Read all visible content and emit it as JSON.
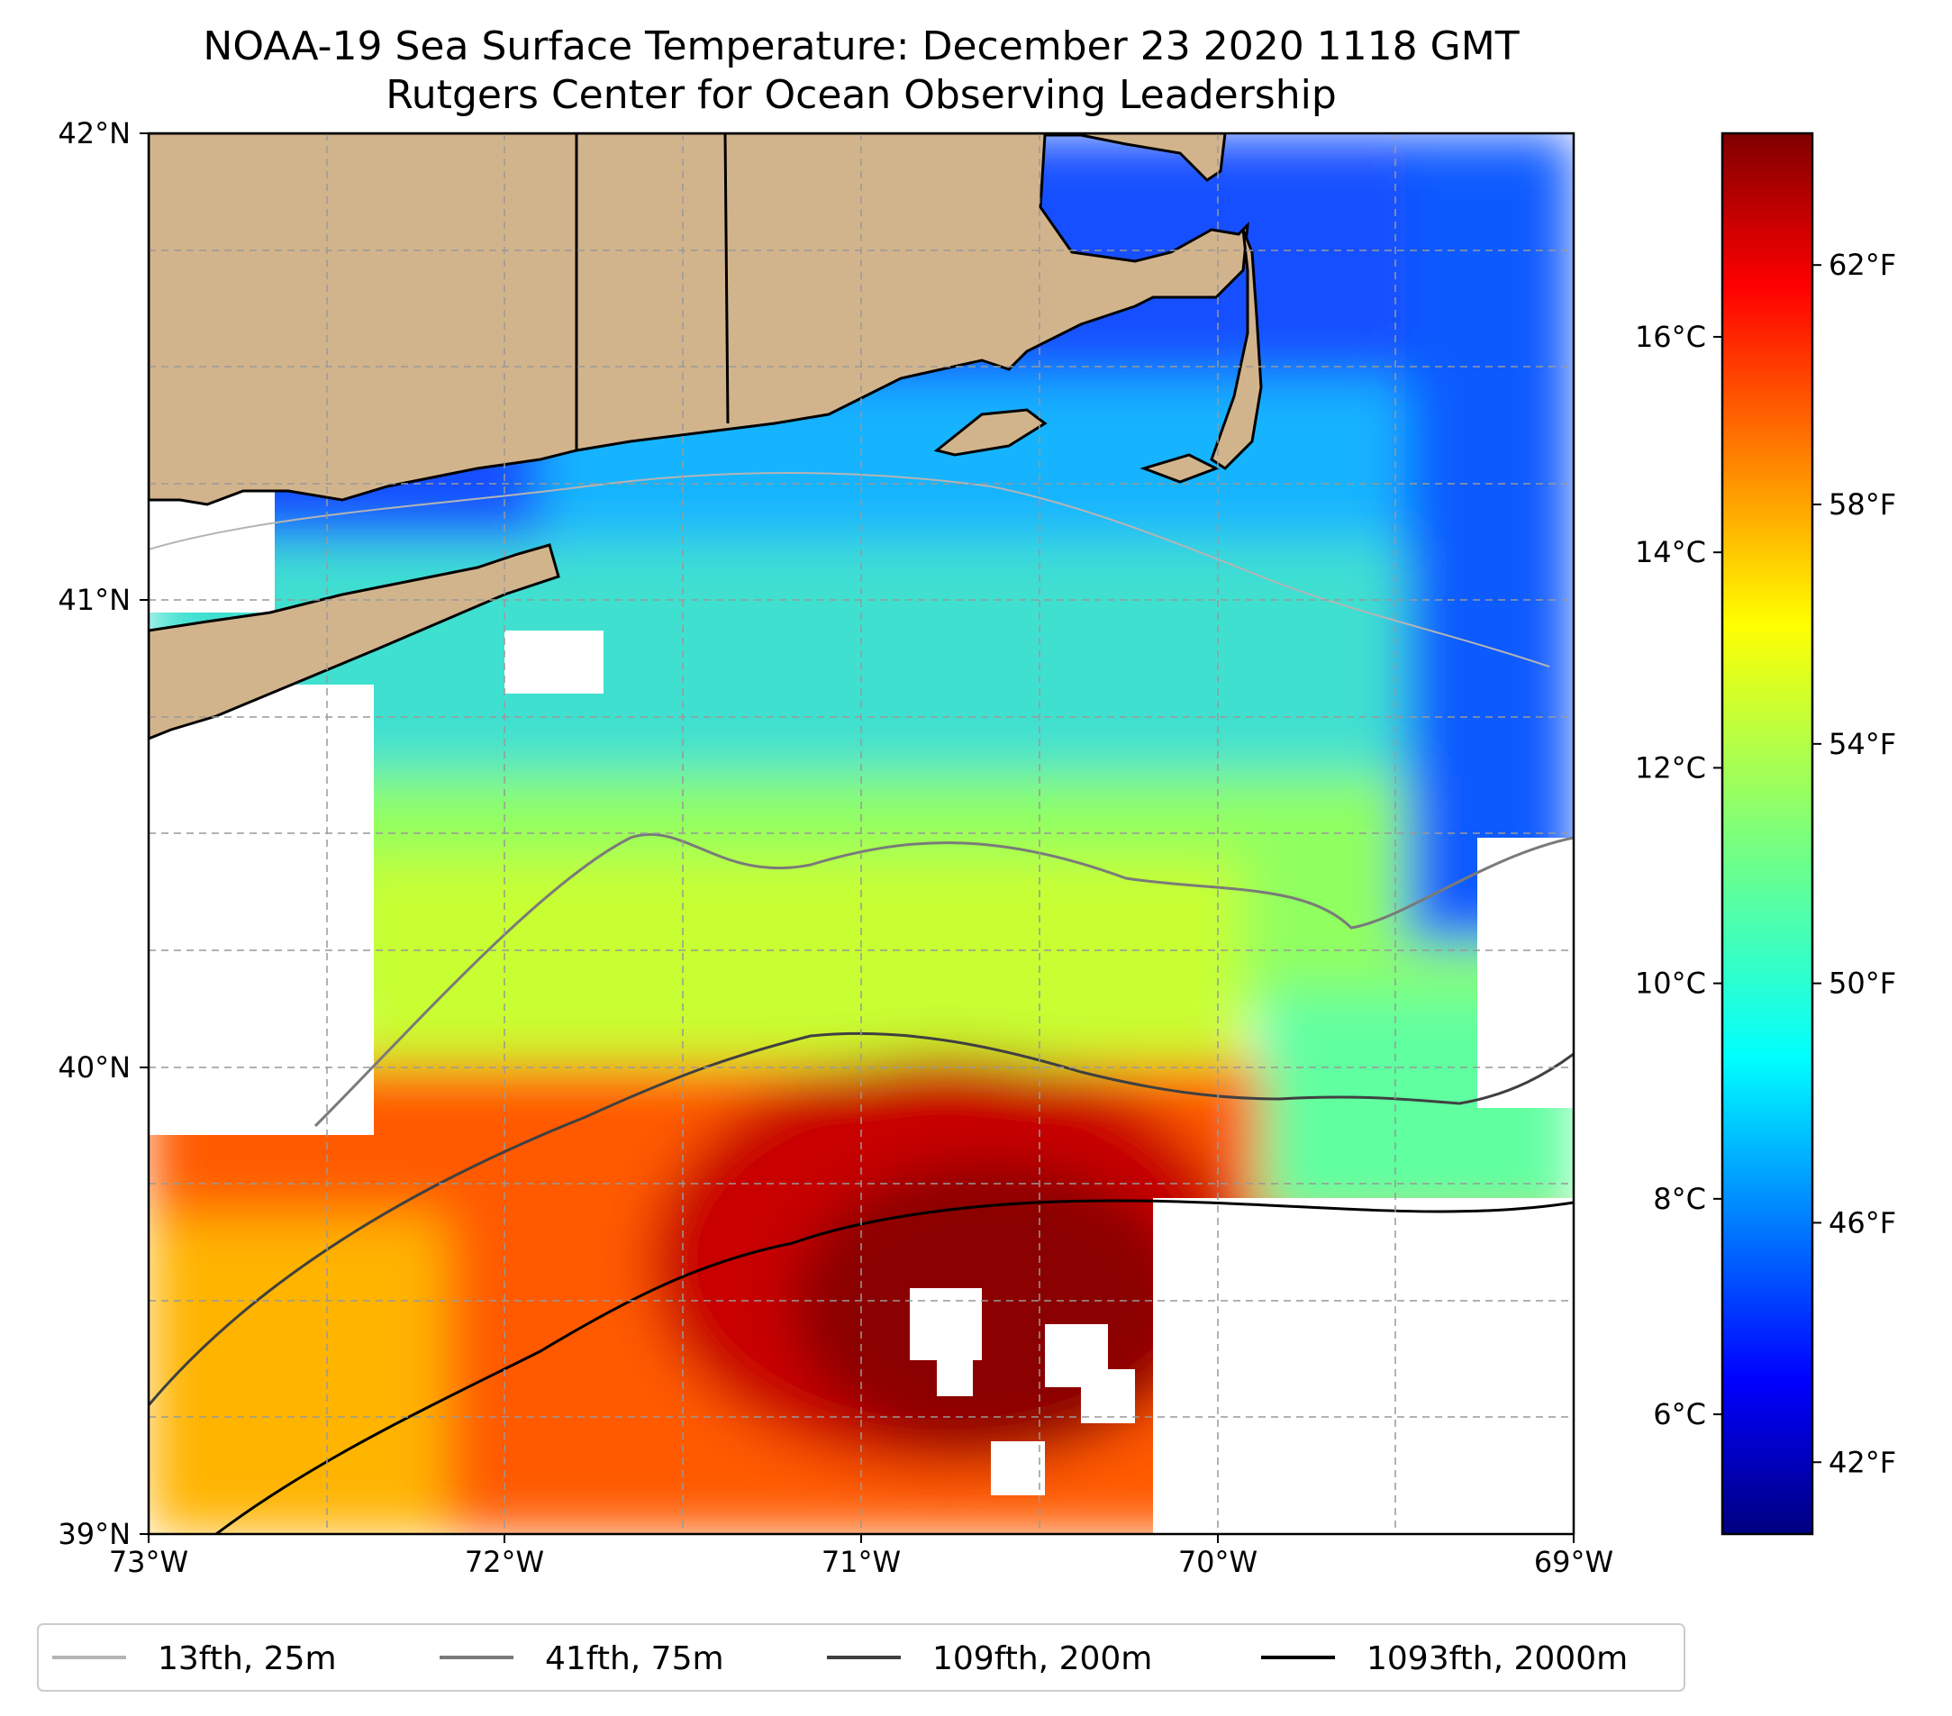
{
  "title": {
    "line1": "NOAA-19 Sea Surface Temperature: December 23 2020 1118 GMT",
    "line2": "Rutgers Center for Ocean Observing Leadership"
  },
  "map": {
    "lon_range": [
      -73,
      -69
    ],
    "lat_range": [
      39,
      42
    ],
    "lon_ticks": [
      "73°W",
      "72°W",
      "71°W",
      "70°W",
      "69°W"
    ],
    "lat_ticks": [
      "39°N",
      "40°N",
      "41°N",
      "42°N"
    ],
    "gridlines": "dashed",
    "land_color": "#d2b48c",
    "no_data_color": "#ffffff"
  },
  "colorbar": {
    "colormap": "jet",
    "celsius_labels": [
      "6°C",
      "8°C",
      "10°C",
      "12°C",
      "14°C",
      "16°C"
    ],
    "celsius_values": [
      6,
      8,
      10,
      12,
      14,
      16
    ],
    "fahrenheit_labels": [
      "42°F",
      "46°F",
      "50°F",
      "54°F",
      "58°F",
      "62°F"
    ],
    "fahrenheit_values": [
      42,
      46,
      50,
      54,
      58,
      62
    ],
    "range_f": [
      40.8,
      64.2
    ]
  },
  "legend": {
    "placement": "bottom",
    "items": [
      {
        "label": "13fth, 25m",
        "color": "#b4b4b4"
      },
      {
        "label": "41fth, 75m",
        "color": "#7a7a7a"
      },
      {
        "label": "109fth, 200m",
        "color": "#404040"
      },
      {
        "label": "1093fth, 2000m",
        "color": "#000000"
      }
    ]
  }
}
